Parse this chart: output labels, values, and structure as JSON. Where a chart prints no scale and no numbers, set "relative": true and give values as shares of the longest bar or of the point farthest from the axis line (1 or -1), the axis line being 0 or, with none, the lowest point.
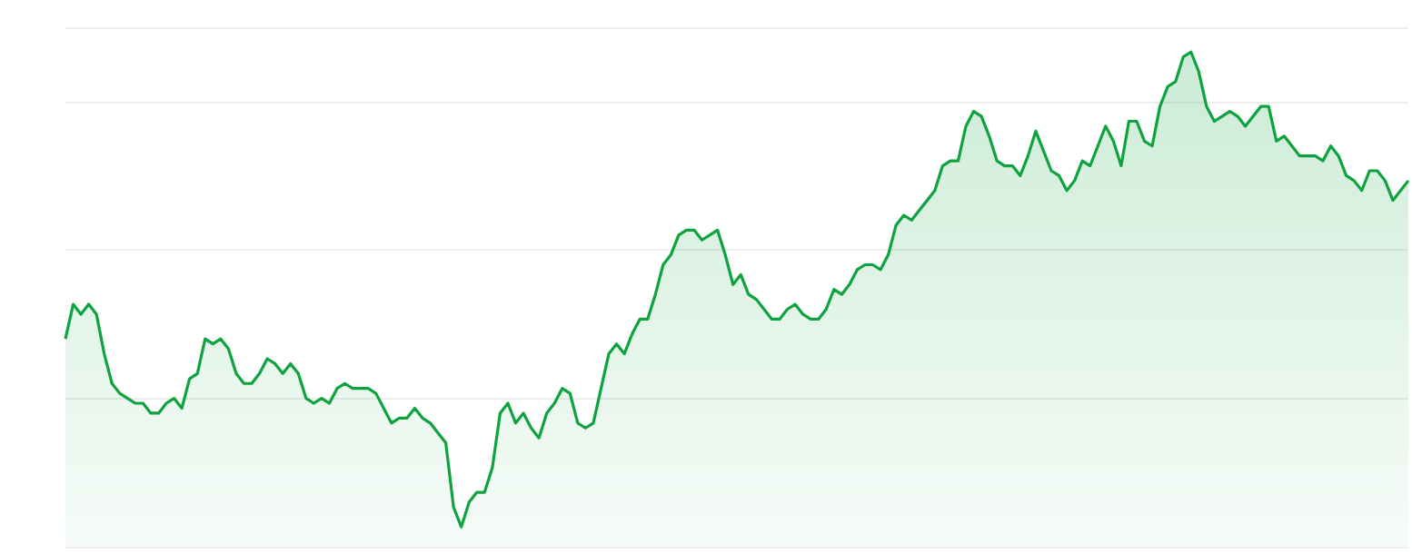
{
  "chart_data": {
    "type": "area",
    "relative": true,
    "grid": "y",
    "categories": [
      null,
      null,
      null,
      null,
      null,
      null,
      null,
      null,
      null,
      null,
      null,
      null,
      null,
      null,
      null,
      null,
      null,
      null,
      null,
      null,
      null,
      null,
      null,
      null,
      null,
      null,
      null,
      null,
      null,
      null,
      null,
      null,
      null,
      null,
      null,
      null,
      null,
      null,
      null,
      null,
      null,
      null,
      null,
      null,
      null,
      null,
      null,
      null,
      null,
      null,
      null,
      null,
      null,
      null,
      null,
      null,
      null,
      null,
      null,
      null,
      null,
      null,
      null,
      null,
      null,
      null,
      null,
      null,
      null,
      null,
      null,
      null,
      null,
      null,
      null,
      null,
      null,
      null,
      null,
      null,
      null,
      null,
      null,
      null,
      null,
      null,
      null,
      null,
      null,
      null,
      null,
      null,
      null,
      null,
      null,
      null,
      null,
      null,
      null,
      null,
      null,
      null,
      null,
      null,
      null,
      null,
      null,
      null,
      null,
      null,
      null,
      null,
      null,
      null,
      null,
      null,
      null,
      null,
      null,
      null,
      null,
      null,
      null,
      null,
      null,
      null,
      null,
      null,
      null,
      null,
      null,
      null,
      null,
      null,
      null,
      null,
      null,
      null,
      null,
      null,
      null,
      null,
      null,
      null,
      null,
      null,
      null,
      null,
      null,
      null,
      null,
      null,
      null,
      null,
      null,
      null,
      null,
      null,
      null,
      null,
      null,
      null,
      null,
      null,
      null,
      null,
      null,
      null,
      null,
      null,
      null,
      null,
      null,
      null
    ],
    "series": [
      {
        "color": "#0ea33f",
        "values": [
          0.42,
          0.49,
          0.47,
          0.49,
          0.47,
          0.39,
          0.33,
          0.31,
          0.3,
          0.29,
          0.29,
          0.27,
          0.27,
          0.29,
          0.3,
          0.28,
          0.34,
          0.35,
          0.42,
          0.41,
          0.42,
          0.4,
          0.35,
          0.33,
          0.33,
          0.35,
          0.38,
          0.37,
          0.35,
          0.37,
          0.35,
          0.3,
          0.29,
          0.3,
          0.29,
          0.32,
          0.33,
          0.32,
          0.32,
          0.32,
          0.31,
          0.28,
          0.25,
          0.26,
          0.26,
          0.28,
          0.26,
          0.25,
          0.23,
          0.21,
          0.08,
          0.04,
          0.09,
          0.11,
          0.11,
          0.16,
          0.27,
          0.29,
          0.25,
          0.27,
          0.24,
          0.22,
          0.27,
          0.29,
          0.32,
          0.31,
          0.25,
          0.24,
          0.25,
          0.32,
          0.39,
          0.41,
          0.39,
          0.43,
          0.46,
          0.46,
          0.51,
          0.57,
          0.59,
          0.63,
          0.64,
          0.64,
          0.62,
          0.63,
          0.64,
          0.59,
          0.53,
          0.55,
          0.51,
          0.5,
          0.48,
          0.46,
          0.46,
          0.48,
          0.49,
          0.47,
          0.46,
          0.46,
          0.48,
          0.52,
          0.51,
          0.53,
          0.56,
          0.57,
          0.57,
          0.56,
          0.59,
          0.65,
          0.67,
          0.66,
          0.68,
          0.7,
          0.72,
          0.77,
          0.78,
          0.78,
          0.85,
          0.88,
          0.87,
          0.83,
          0.78,
          0.77,
          0.77,
          0.75,
          0.79,
          0.84,
          0.8,
          0.76,
          0.75,
          0.72,
          0.74,
          0.78,
          0.77,
          0.81,
          0.85,
          0.82,
          0.77,
          0.86,
          0.86,
          0.82,
          0.81,
          0.89,
          0.93,
          0.94,
          0.99,
          1,
          0.96,
          0.89,
          0.86,
          0.87,
          0.88,
          0.87,
          0.85,
          0.87,
          0.89,
          0.89,
          0.82,
          0.83,
          0.81,
          0.79,
          0.79,
          0.79,
          0.78,
          0.81,
          0.79,
          0.75,
          0.74,
          0.72,
          0.76,
          0.76,
          0.74,
          0.7,
          0.72,
          0.74
        ]
      }
    ]
  }
}
